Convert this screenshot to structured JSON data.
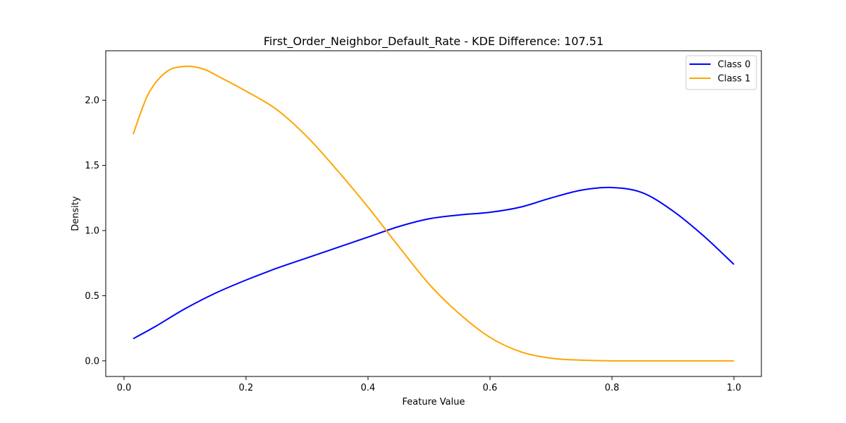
{
  "chart_data": {
    "type": "line",
    "title": "First_Order_Neighbor_Default_Rate - KDE Difference: 107.51",
    "xlabel": "Feature Value",
    "ylabel": "Density",
    "xlim": [
      -0.03,
      1.045
    ],
    "ylim": [
      -0.12,
      2.38
    ],
    "xticks": [
      0.0,
      0.2,
      0.4,
      0.6,
      0.8,
      1.0
    ],
    "xtick_labels": [
      "0.0",
      "0.2",
      "0.4",
      "0.6",
      "0.8",
      "1.0"
    ],
    "yticks": [
      0.0,
      0.5,
      1.0,
      1.5,
      2.0
    ],
    "ytick_labels": [
      "0.0",
      "0.5",
      "1.0",
      "1.5",
      "2.0"
    ],
    "grid": false,
    "legend_position": "top-right",
    "series": [
      {
        "name": "Class 0",
        "color": "#0000ff",
        "x": [
          0.015,
          0.05,
          0.1,
          0.15,
          0.2,
          0.25,
          0.3,
          0.35,
          0.4,
          0.45,
          0.5,
          0.55,
          0.6,
          0.65,
          0.7,
          0.75,
          0.8,
          0.85,
          0.9,
          0.95,
          1.0
        ],
        "y": [
          0.17,
          0.26,
          0.4,
          0.52,
          0.62,
          0.71,
          0.79,
          0.87,
          0.95,
          1.03,
          1.09,
          1.12,
          1.14,
          1.18,
          1.25,
          1.31,
          1.33,
          1.29,
          1.15,
          0.96,
          0.74
        ]
      },
      {
        "name": "Class 1",
        "color": "#ffa500",
        "x": [
          0.015,
          0.04,
          0.07,
          0.1,
          0.13,
          0.16,
          0.2,
          0.25,
          0.3,
          0.35,
          0.4,
          0.43,
          0.45,
          0.5,
          0.55,
          0.6,
          0.65,
          0.7,
          0.75,
          0.8,
          0.85,
          0.9,
          1.0
        ],
        "y": [
          1.74,
          2.05,
          2.22,
          2.26,
          2.24,
          2.17,
          2.07,
          1.93,
          1.72,
          1.46,
          1.18,
          1.0,
          0.88,
          0.59,
          0.36,
          0.18,
          0.07,
          0.02,
          0.005,
          0.0,
          0.0,
          0.0,
          0.0
        ]
      }
    ]
  }
}
